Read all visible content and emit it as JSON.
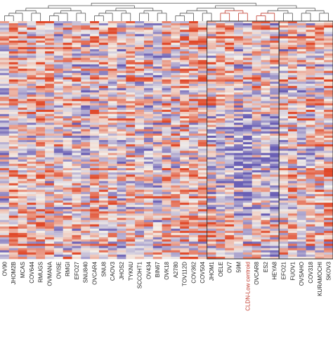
{
  "chart_data": {
    "type": "heatmap",
    "title": "",
    "xlabel": "",
    "ylabel": "",
    "color_scale": {
      "low": "#6a5fb5",
      "mid": "#f3efe9",
      "high": "#e0492a"
    },
    "highlight_color": "#c0392b",
    "dendrogram": "top",
    "cluster_boxes": [
      {
        "from": "JHOM1",
        "to": "HEYA8"
      },
      {
        "from": "EFO21",
        "to": "SKOV3"
      }
    ],
    "columns": [
      "OV90",
      "JHOM2B",
      "MCAS",
      "COV644",
      "RMUGS",
      "OVMANA",
      "OVISE",
      "RMGI",
      "EFO27",
      "SNU840",
      "OVCAR4",
      "SNU8",
      "CAOV3",
      "JHOS2",
      "TYKNU",
      "SCCOHT1",
      "OV434",
      "BIN67",
      "OVK18",
      "A2780",
      "TOV112D",
      "COV362",
      "COV504",
      "JHOM1",
      "OELE",
      "OV7",
      "59M",
      "CLDN-Low centroid",
      "OVCAR8",
      "ES2",
      "HEYA8",
      "EFO21",
      "FUOV1",
      "OVSAHO",
      "COV318",
      "KURAMOCHI",
      "SKOV3"
    ],
    "highlighted_column": "CLDN-Low centroid"
  }
}
